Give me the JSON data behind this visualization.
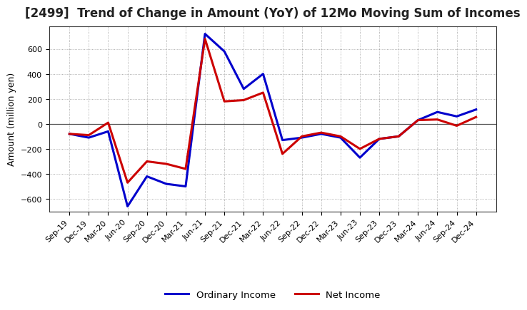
{
  "title": "[2499]  Trend of Change in Amount (YoY) of 12Mo Moving Sum of Incomes",
  "ylabel": "Amount (million yen)",
  "x_labels": [
    "Sep-19",
    "Dec-19",
    "Mar-20",
    "Jun-20",
    "Sep-20",
    "Dec-20",
    "Mar-21",
    "Jun-21",
    "Sep-21",
    "Dec-21",
    "Mar-22",
    "Jun-22",
    "Sep-22",
    "Dec-22",
    "Mar-23",
    "Jun-23",
    "Sep-23",
    "Dec-23",
    "Mar-24",
    "Jun-24",
    "Sep-24",
    "Dec-24"
  ],
  "ordinary_income": [
    -80,
    -110,
    -60,
    -660,
    -420,
    -480,
    -500,
    720,
    580,
    280,
    400,
    -130,
    -110,
    -80,
    -110,
    -270,
    -120,
    -100,
    30,
    95,
    60,
    115
  ],
  "net_income": [
    -80,
    -90,
    10,
    -470,
    -300,
    -320,
    -360,
    680,
    180,
    190,
    250,
    -240,
    -100,
    -70,
    -100,
    -200,
    -120,
    -100,
    30,
    35,
    -15,
    55
  ],
  "ordinary_color": "#0000cc",
  "net_color": "#cc0000",
  "ylim": [
    -700,
    780
  ],
  "yticks": [
    -600,
    -400,
    -200,
    0,
    200,
    400,
    600
  ],
  "bg_color": "#FFFFFF",
  "plot_bg_color": "#FFFFFF",
  "grid_color": "#999999",
  "legend_labels": [
    "Ordinary Income",
    "Net Income"
  ],
  "line_width": 2.2,
  "title_fontsize": 12,
  "tick_fontsize": 8,
  "ylabel_fontsize": 9
}
